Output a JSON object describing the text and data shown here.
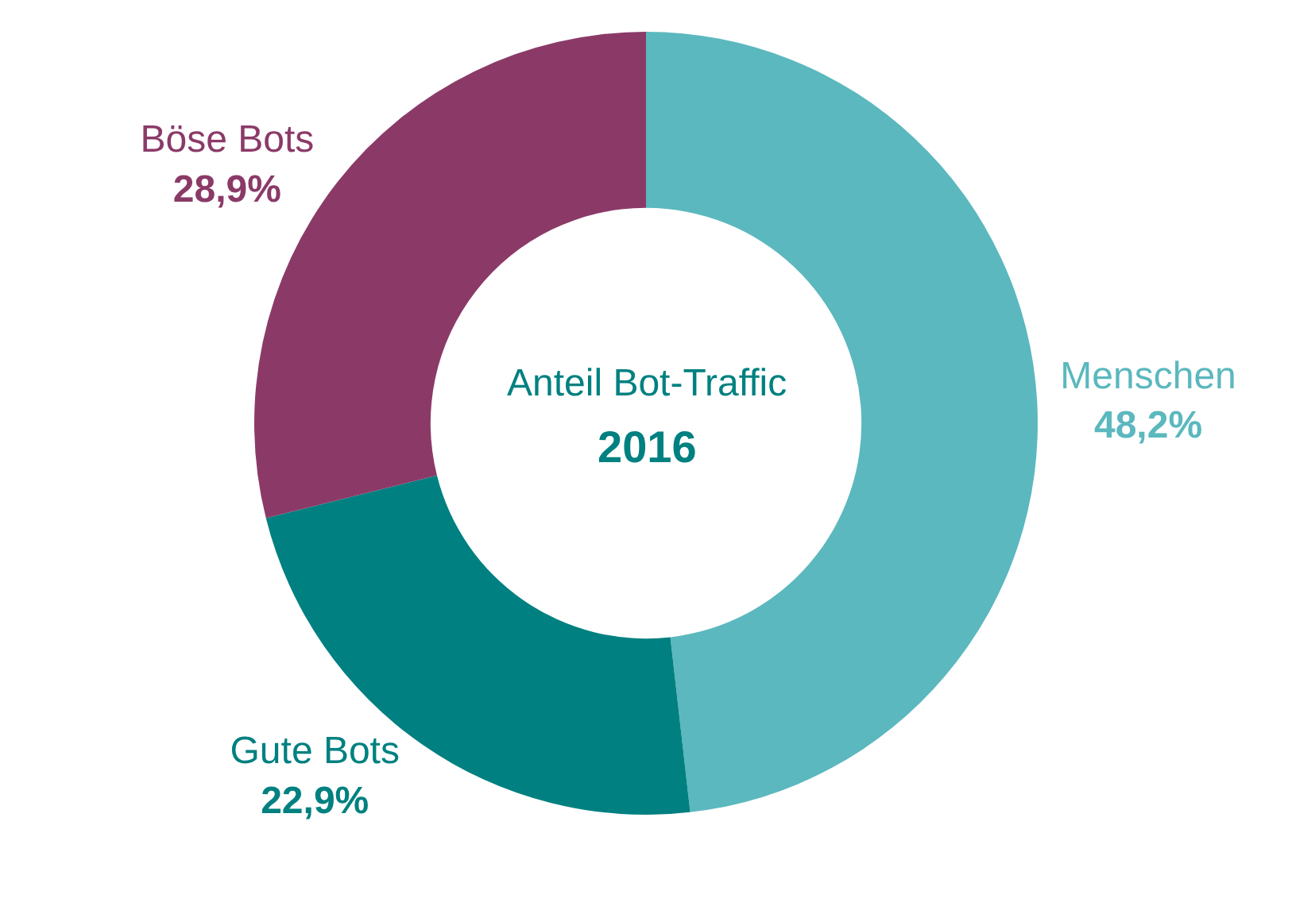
{
  "chart_data": {
    "type": "donut",
    "title": "Anteil Bot-Traffic",
    "subtitle": "2016",
    "categories": [
      "Menschen",
      "Gute Bots",
      "Böse Bots"
    ],
    "values": [
      48.2,
      22.9,
      28.9
    ],
    "colors": [
      "#5bb8be",
      "#008080",
      "#8b3a68"
    ],
    "value_labels": [
      "48,2%",
      "22,9%",
      "28,9%"
    ],
    "legend": false
  }
}
